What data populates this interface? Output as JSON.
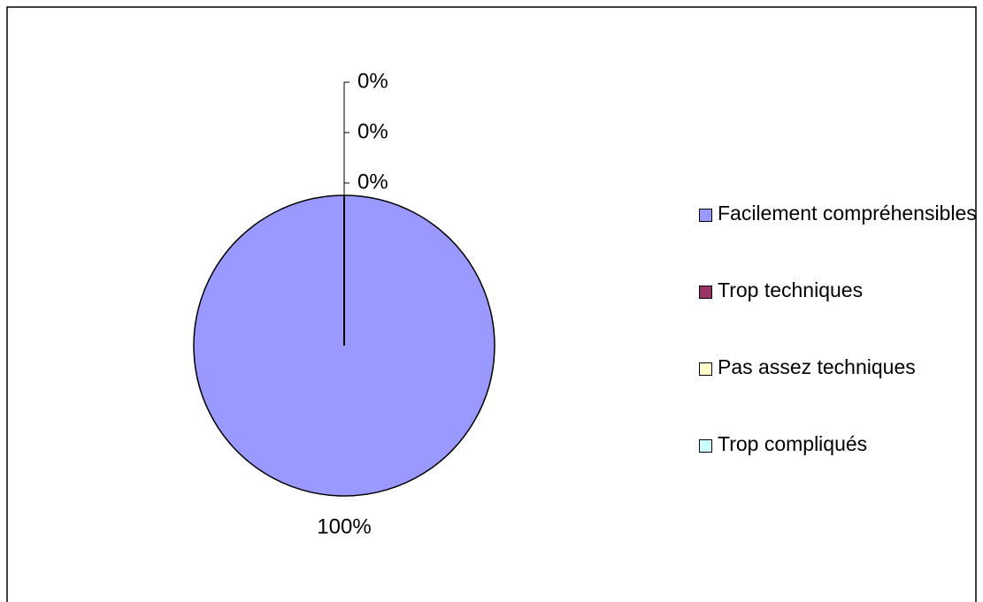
{
  "chart_data": {
    "type": "pie",
    "categories": [
      "Facilement compréhensibles",
      "Trop techniques",
      "Pas assez techniques",
      "Trop compliqués"
    ],
    "values": [
      100,
      0,
      0,
      0
    ],
    "value_labels": [
      "100%",
      "0%",
      "0%",
      "0%"
    ],
    "colors": [
      "#9999ff",
      "#993366",
      "#ffffcc",
      "#ccffff"
    ],
    "legend": "right"
  }
}
